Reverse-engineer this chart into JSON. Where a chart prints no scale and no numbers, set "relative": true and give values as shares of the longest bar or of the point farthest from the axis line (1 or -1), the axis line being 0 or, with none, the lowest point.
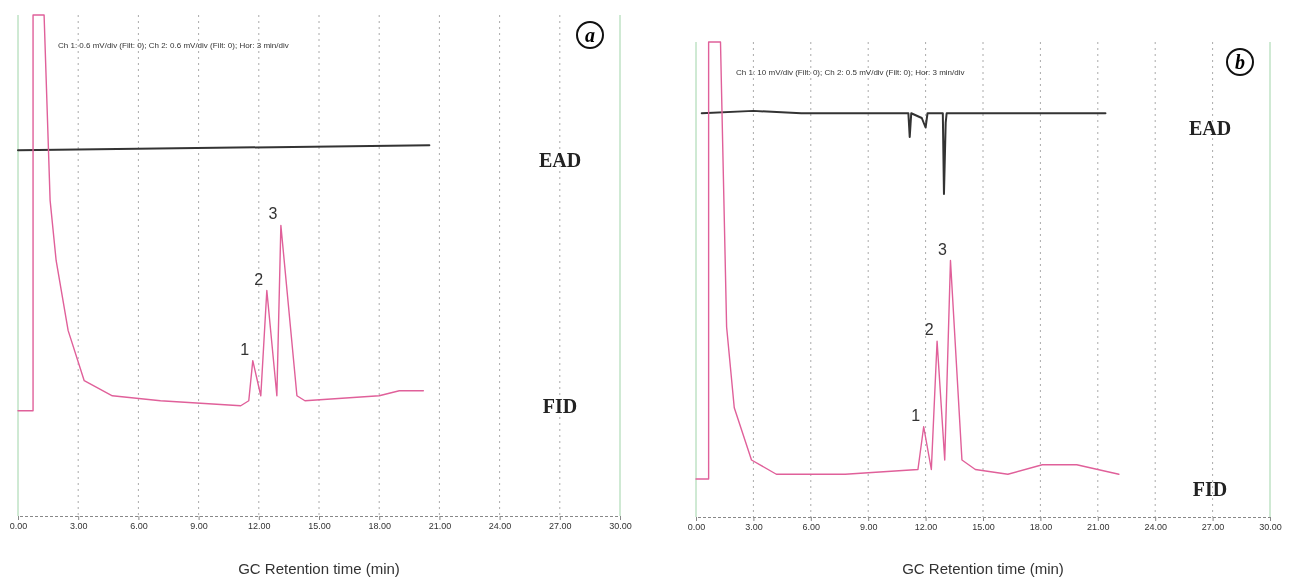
{
  "chart_data": [
    {
      "type": "line",
      "title": "a",
      "xlabel": "GC Retention time (min)",
      "relative": true,
      "xlim": [
        0,
        30
      ],
      "xticks": [
        {
          "value": 0,
          "label": "0.00"
        },
        {
          "value": 3,
          "label": "3.00"
        },
        {
          "value": 6,
          "label": "6.00"
        },
        {
          "value": 9,
          "label": "9.00"
        },
        {
          "value": 12,
          "label": "12.00"
        },
        {
          "value": 15,
          "label": "15.00"
        },
        {
          "value": 18,
          "label": "18.00"
        },
        {
          "value": 21,
          "label": "21.00"
        },
        {
          "value": 24,
          "label": "24.00"
        },
        {
          "value": 27,
          "label": "27.00"
        },
        {
          "value": 30,
          "label": "30.00"
        }
      ],
      "grid": "x",
      "line_style": "solid",
      "marker": "none",
      "series": [
        {
          "name": "EAD",
          "color": "#333333",
          "x": [
            0,
            20.5
          ],
          "values": [
            0.73,
            0.74
          ]
        },
        {
          "name": "FID",
          "color": "#e0609a",
          "x": [
            0,
            0.75,
            0.75,
            1.3,
            1.6,
            1.9,
            2.5,
            3.3,
            4.7,
            7.1,
            11.1,
            11.5,
            11.7,
            12.1,
            12.4,
            12.9,
            13.1,
            13.9,
            14.3,
            18.0,
            19.0,
            20.2
          ],
          "values": [
            0.21,
            0.21,
            1,
            1,
            0.63,
            0.51,
            0.37,
            0.27,
            0.24,
            0.23,
            0.22,
            0.23,
            0.31,
            0.24,
            0.45,
            0.24,
            0.58,
            0.24,
            0.23,
            0.24,
            0.25,
            0.25
          ]
        }
      ],
      "annotations": [
        "Ch 1: 0.6 mV/div (Filt: 0);  Ch 2: 0.6 mV/div (Filt: 0);  Hor: 3 min/div",
        {
          "text": "1",
          "x": 11.7,
          "y": 0.31
        },
        {
          "text": "2",
          "x": 12.4,
          "y": 0.45
        },
        {
          "text": "3",
          "x": 13.1,
          "y": 0.58
        }
      ]
    },
    {
      "type": "line",
      "title": "b",
      "xlabel": "GC Retention time (min)",
      "relative": true,
      "xlim": [
        0,
        30
      ],
      "xticks": [
        {
          "value": 0,
          "label": "0.00"
        },
        {
          "value": 3,
          "label": "3.00"
        },
        {
          "value": 6,
          "label": "6.00"
        },
        {
          "value": 9,
          "label": "9.00"
        },
        {
          "value": 12,
          "label": "12.00"
        },
        {
          "value": 15,
          "label": "15.00"
        },
        {
          "value": 18,
          "label": "18.00"
        },
        {
          "value": 21,
          "label": "21.00"
        },
        {
          "value": 24,
          "label": "24.00"
        },
        {
          "value": 27,
          "label": "27.00"
        },
        {
          "value": 30,
          "label": "30.00"
        }
      ],
      "grid": "x",
      "line_style": "solid",
      "marker": "none",
      "series": [
        {
          "name": "EAD",
          "color": "#333333",
          "x": [
            0.3,
            3,
            5.5,
            11.1,
            11.17,
            11.25,
            11.8,
            12.0,
            12.1,
            12.9,
            12.96,
            13.05,
            13.1,
            21.4
          ],
          "values": [
            0.85,
            0.855,
            0.85,
            0.85,
            0.8,
            0.85,
            0.84,
            0.82,
            0.85,
            0.85,
            0.68,
            0.83,
            0.85,
            0.85
          ]
        },
        {
          "name": "FID",
          "color": "#e0609a",
          "x": [
            0,
            0.66,
            0.66,
            1.28,
            1.6,
            2.0,
            2.9,
            4.2,
            7.8,
            11.6,
            11.9,
            12.3,
            12.6,
            13.0,
            13.3,
            13.9,
            14.6,
            16.3,
            18.1,
            19.9,
            22.1
          ],
          "values": [
            0.08,
            0.08,
            1,
            1,
            0.4,
            0.23,
            0.12,
            0.09,
            0.09,
            0.1,
            0.19,
            0.1,
            0.37,
            0.12,
            0.54,
            0.12,
            0.1,
            0.09,
            0.11,
            0.11,
            0.09
          ]
        }
      ],
      "annotations": [
        "Ch 1: 10 mV/div (Filt: 0);  Ch 2: 0.5 mV/div (Filt: 0);  Hor: 3 min/div",
        {
          "text": "1",
          "x": 11.9,
          "y": 0.19
        },
        {
          "text": "2",
          "x": 12.6,
          "y": 0.37
        },
        {
          "text": "3",
          "x": 13.3,
          "y": 0.54
        }
      ]
    }
  ]
}
